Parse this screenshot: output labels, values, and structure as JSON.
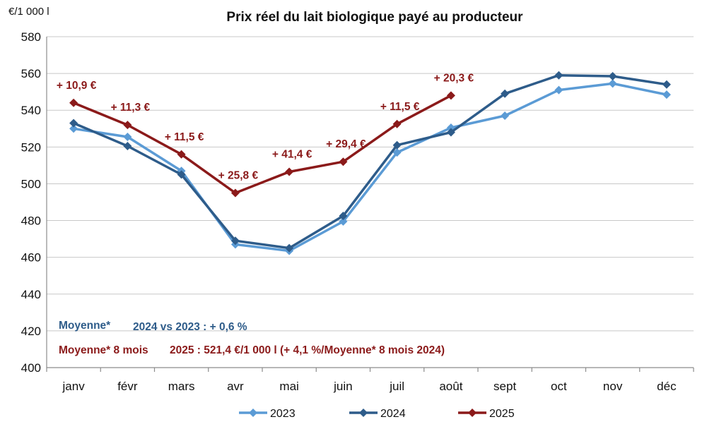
{
  "chart_data": {
    "type": "line",
    "title": "Prix réel du lait biologique payé au producteur",
    "ylabel": "€/1 000 l",
    "xlabel": "",
    "ylim": [
      400,
      580
    ],
    "yticks": [
      400,
      420,
      440,
      460,
      480,
      500,
      520,
      540,
      560,
      580
    ],
    "grid": true,
    "legend_position": "bottom",
    "categories": [
      "janv",
      "févr",
      "mars",
      "avr",
      "mai",
      "juin",
      "juil",
      "août",
      "sept",
      "oct",
      "nov",
      "déc"
    ],
    "series": [
      {
        "name": "2023",
        "color": "#5b9bd5",
        "values": [
          530,
          525.5,
          507,
          467,
          463.5,
          479.5,
          517,
          530.5,
          537,
          551,
          554.5,
          548.5
        ]
      },
      {
        "name": "2024",
        "color": "#2e5c8a",
        "values": [
          533,
          520.5,
          505,
          469,
          465,
          482.5,
          521,
          528,
          549,
          559,
          558.5,
          554
        ]
      },
      {
        "name": "2025",
        "color": "#8b1a1a",
        "values": [
          544,
          532,
          516,
          495,
          506.5,
          512,
          532.5,
          548,
          null,
          null,
          null,
          null
        ]
      }
    ],
    "annotations": [
      {
        "month": "janv",
        "text": "+ 10,9 €"
      },
      {
        "month": "févr",
        "text": "+ 11,3 €"
      },
      {
        "month": "mars",
        "text": "+ 11,5 €"
      },
      {
        "month": "avr",
        "text": "+ 25,8 €"
      },
      {
        "month": "mai",
        "text": "+ 41,4 €"
      },
      {
        "month": "juin",
        "text": "+ 29,4 €"
      },
      {
        "month": "juil",
        "text": "+ 11,5 €"
      },
      {
        "month": "août",
        "text": "+ 20,3 €"
      }
    ],
    "annotation_color": "#8b1a1a",
    "notes": {
      "note1_prefix": "Moyenne*",
      "note1_text": "2024 vs 2023 : + 0,6 %",
      "note1_color": "#2e5c8a",
      "note2_prefix": "Moyenne* 8 mois",
      "note2_text": "2025 : 521,4 €/1 000 l (+ 4,1 %/Moyenne* 8 mois 2024)",
      "note2_color": "#8b1a1a"
    }
  }
}
